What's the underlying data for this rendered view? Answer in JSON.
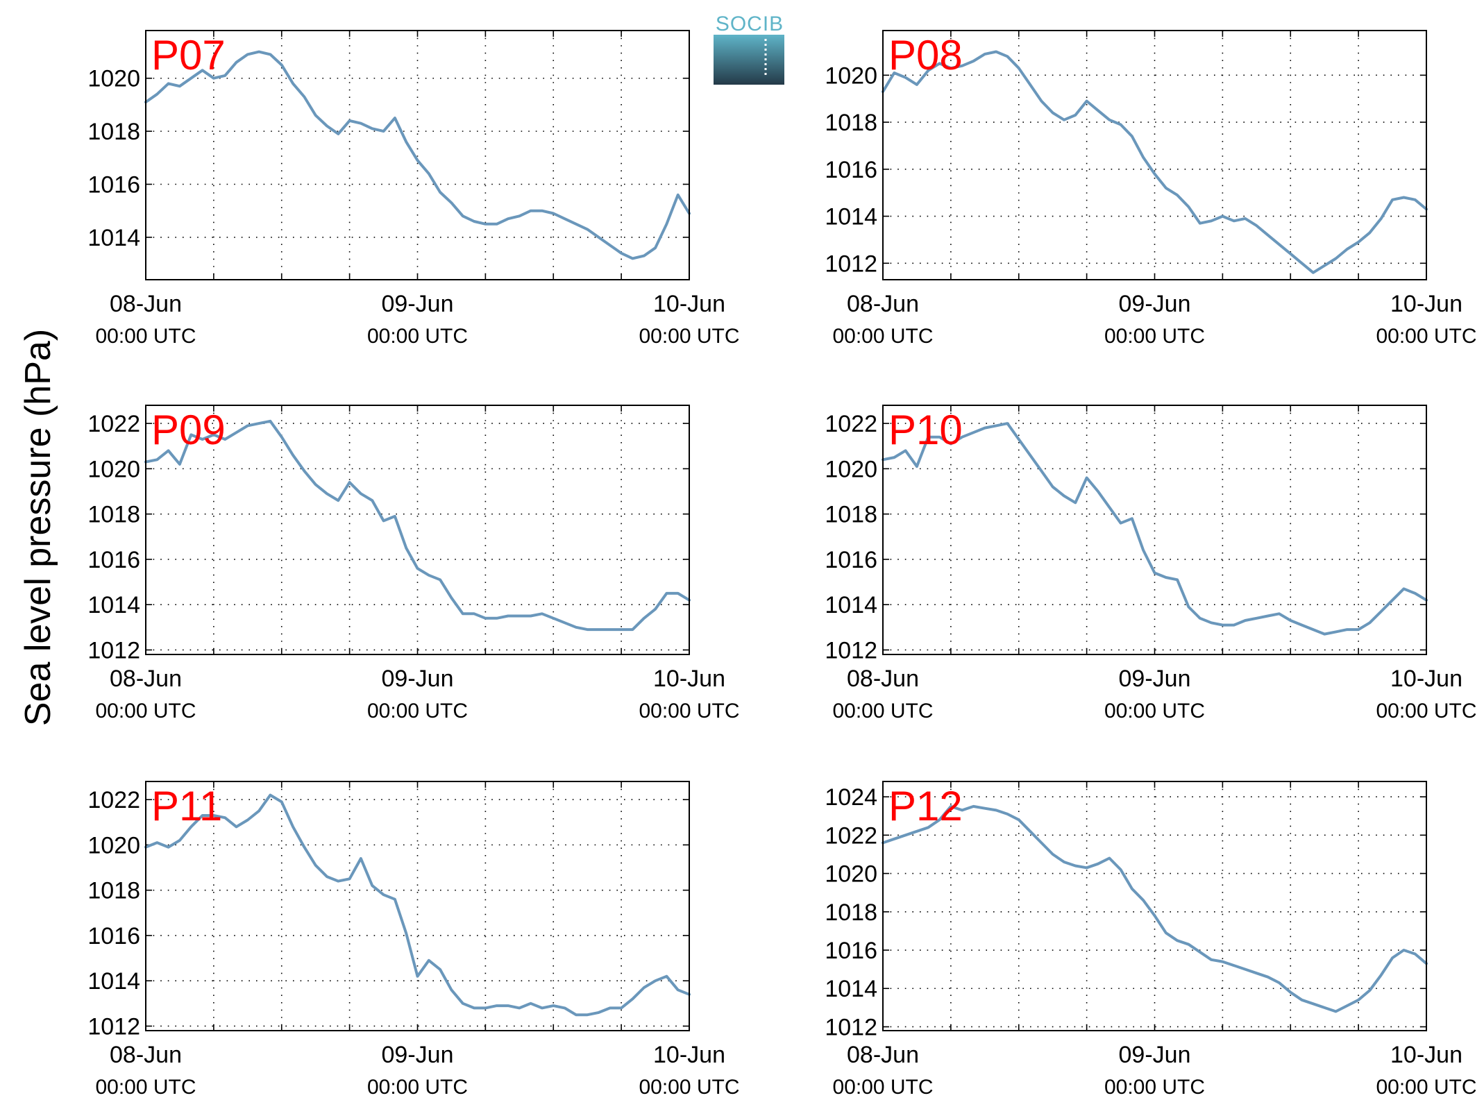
{
  "figure": {
    "ylabel": "Sea level pressure (hPa)",
    "logo_text": "SOCIB",
    "colors": {
      "line": "#6a97bb",
      "panel_label": "#ff0000",
      "grid": "#000000",
      "logo_top": "#5fb4c8",
      "logo_bottom": "#243a48"
    }
  },
  "chart_data": [
    {
      "type": "line",
      "label": "P07",
      "x_ticks": [
        {
          "main": "08-Jun",
          "sub": "00:00 UTC"
        },
        {
          "main": "09-Jun",
          "sub": "00:00 UTC"
        },
        {
          "main": "10-Jun",
          "sub": "00:00 UTC"
        }
      ],
      "xlim_hours": [
        0,
        48
      ],
      "ylim": [
        1012.4,
        1021.8
      ],
      "yticks": [
        1014,
        1016,
        1018,
        1020
      ],
      "grid": true,
      "series": [
        {
          "x_hours": [
            0,
            1,
            2,
            3,
            4,
            5,
            6,
            7,
            8,
            9,
            10,
            11,
            12,
            13,
            14,
            15,
            16,
            17,
            18,
            19,
            20,
            21,
            22,
            23,
            24,
            25,
            26,
            27,
            28,
            29,
            30,
            31,
            32,
            33,
            34,
            35,
            36,
            37,
            38,
            39,
            40,
            41,
            42,
            43,
            44,
            45,
            46,
            47,
            48
          ],
          "values": [
            1019.1,
            1019.4,
            1019.8,
            1019.7,
            1020.0,
            1020.3,
            1020.0,
            1020.1,
            1020.6,
            1020.9,
            1021.0,
            1020.9,
            1020.5,
            1019.8,
            1019.3,
            1018.6,
            1018.2,
            1017.9,
            1018.4,
            1018.3,
            1018.1,
            1018.0,
            1018.5,
            1017.6,
            1016.9,
            1016.4,
            1015.7,
            1015.3,
            1014.8,
            1014.6,
            1014.5,
            1014.5,
            1014.7,
            1014.8,
            1015.0,
            1015.0,
            1014.9,
            1014.7,
            1014.5,
            1014.3,
            1014.0,
            1013.7,
            1013.4,
            1013.2,
            1013.3,
            1013.6,
            1014.5,
            1015.6,
            1014.9
          ]
        }
      ]
    },
    {
      "type": "line",
      "label": "P08",
      "x_ticks": [
        {
          "main": "08-Jun",
          "sub": "00:00 UTC"
        },
        {
          "main": "09-Jun",
          "sub": "00:00 UTC"
        },
        {
          "main": "10-Jun",
          "sub": "00:00 UTC"
        }
      ],
      "xlim_hours": [
        0,
        48
      ],
      "ylim": [
        1011.3,
        1021.9
      ],
      "yticks": [
        1012,
        1014,
        1016,
        1018,
        1020
      ],
      "grid": true,
      "series": [
        {
          "x_hours": [
            0,
            1,
            2,
            3,
            4,
            5,
            6,
            7,
            8,
            9,
            10,
            11,
            12,
            13,
            14,
            15,
            16,
            17,
            18,
            19,
            20,
            21,
            22,
            23,
            24,
            25,
            26,
            27,
            28,
            29,
            30,
            31,
            32,
            33,
            34,
            35,
            36,
            37,
            38,
            39,
            40,
            41,
            42,
            43,
            44,
            45,
            46,
            47,
            48
          ],
          "values": [
            1019.3,
            1020.1,
            1019.9,
            1019.6,
            1020.2,
            1020.5,
            1020.3,
            1020.4,
            1020.6,
            1020.9,
            1021.0,
            1020.8,
            1020.3,
            1019.6,
            1018.9,
            1018.4,
            1018.1,
            1018.3,
            1018.9,
            1018.5,
            1018.1,
            1017.9,
            1017.4,
            1016.5,
            1015.8,
            1015.2,
            1014.9,
            1014.4,
            1013.7,
            1013.8,
            1014.0,
            1013.8,
            1013.9,
            1013.6,
            1013.2,
            1012.8,
            1012.4,
            1012.0,
            1011.6,
            1011.9,
            1012.2,
            1012.6,
            1012.9,
            1013.3,
            1013.9,
            1014.7,
            1014.8,
            1014.7,
            1014.3
          ]
        }
      ]
    },
    {
      "type": "line",
      "label": "P09",
      "x_ticks": [
        {
          "main": "08-Jun",
          "sub": "00:00 UTC"
        },
        {
          "main": "09-Jun",
          "sub": "00:00 UTC"
        },
        {
          "main": "10-Jun",
          "sub": "00:00 UTC"
        }
      ],
      "xlim_hours": [
        0,
        48
      ],
      "ylim": [
        1011.8,
        1022.8
      ],
      "yticks": [
        1012,
        1014,
        1016,
        1018,
        1020,
        1022
      ],
      "grid": true,
      "series": [
        {
          "x_hours": [
            0,
            1,
            2,
            3,
            4,
            5,
            6,
            7,
            8,
            9,
            10,
            11,
            12,
            13,
            14,
            15,
            16,
            17,
            18,
            19,
            20,
            21,
            22,
            23,
            24,
            25,
            26,
            27,
            28,
            29,
            30,
            31,
            32,
            33,
            34,
            35,
            36,
            37,
            38,
            39,
            40,
            41,
            42,
            43,
            44,
            45,
            46,
            47,
            48
          ],
          "values": [
            1020.3,
            1020.4,
            1020.8,
            1020.2,
            1021.5,
            1021.3,
            1021.5,
            1021.3,
            1021.6,
            1021.9,
            1022.0,
            1022.1,
            1021.4,
            1020.6,
            1019.9,
            1019.3,
            1018.9,
            1018.6,
            1019.4,
            1018.9,
            1018.6,
            1017.7,
            1017.9,
            1016.5,
            1015.6,
            1015.3,
            1015.1,
            1014.3,
            1013.6,
            1013.6,
            1013.4,
            1013.4,
            1013.5,
            1013.5,
            1013.5,
            1013.6,
            1013.4,
            1013.2,
            1013.0,
            1012.9,
            1012.9,
            1012.9,
            1012.9,
            1012.9,
            1013.4,
            1013.8,
            1014.5,
            1014.5,
            1014.2
          ]
        }
      ]
    },
    {
      "type": "line",
      "label": "P10",
      "x_ticks": [
        {
          "main": "08-Jun",
          "sub": "00:00 UTC"
        },
        {
          "main": "09-Jun",
          "sub": "00:00 UTC"
        },
        {
          "main": "10-Jun",
          "sub": "00:00 UTC"
        }
      ],
      "xlim_hours": [
        0,
        48
      ],
      "ylim": [
        1011.8,
        1022.8
      ],
      "yticks": [
        1012,
        1014,
        1016,
        1018,
        1020,
        1022
      ],
      "grid": true,
      "series": [
        {
          "x_hours": [
            0,
            1,
            2,
            3,
            4,
            5,
            6,
            7,
            8,
            9,
            10,
            11,
            12,
            13,
            14,
            15,
            16,
            17,
            18,
            19,
            20,
            21,
            22,
            23,
            24,
            25,
            26,
            27,
            28,
            29,
            30,
            31,
            32,
            33,
            34,
            35,
            36,
            37,
            38,
            39,
            40,
            41,
            42,
            43,
            44,
            45,
            46,
            47,
            48
          ],
          "values": [
            1020.4,
            1020.5,
            1020.8,
            1020.1,
            1021.4,
            1021.4,
            1021.1,
            1021.4,
            1021.6,
            1021.8,
            1021.9,
            1022.0,
            1021.3,
            1020.6,
            1019.9,
            1019.2,
            1018.8,
            1018.5,
            1019.6,
            1019.0,
            1018.3,
            1017.6,
            1017.8,
            1016.4,
            1015.4,
            1015.2,
            1015.1,
            1013.9,
            1013.4,
            1013.2,
            1013.1,
            1013.1,
            1013.3,
            1013.4,
            1013.5,
            1013.6,
            1013.3,
            1013.1,
            1012.9,
            1012.7,
            1012.8,
            1012.9,
            1012.9,
            1013.2,
            1013.7,
            1014.2,
            1014.7,
            1014.5,
            1014.2
          ]
        }
      ]
    },
    {
      "type": "line",
      "label": "P11",
      "x_ticks": [
        {
          "main": "08-Jun",
          "sub": "00:00 UTC"
        },
        {
          "main": "09-Jun",
          "sub": "00:00 UTC"
        },
        {
          "main": "10-Jun",
          "sub": "00:00 UTC"
        }
      ],
      "xlim_hours": [
        0,
        48
      ],
      "ylim": [
        1011.8,
        1022.8
      ],
      "yticks": [
        1012,
        1014,
        1016,
        1018,
        1020,
        1022
      ],
      "grid": true,
      "series": [
        {
          "x_hours": [
            0,
            1,
            2,
            3,
            4,
            5,
            6,
            7,
            8,
            9,
            10,
            11,
            12,
            13,
            14,
            15,
            16,
            17,
            18,
            19,
            20,
            21,
            22,
            23,
            24,
            25,
            26,
            27,
            28,
            29,
            30,
            31,
            32,
            33,
            34,
            35,
            36,
            37,
            38,
            39,
            40,
            41,
            42,
            43,
            44,
            45,
            46,
            47,
            48
          ],
          "values": [
            1019.9,
            1020.1,
            1019.9,
            1020.2,
            1020.8,
            1021.3,
            1021.3,
            1021.2,
            1020.8,
            1021.1,
            1021.5,
            1022.2,
            1021.9,
            1020.8,
            1019.9,
            1019.1,
            1018.6,
            1018.4,
            1018.5,
            1019.4,
            1018.2,
            1017.8,
            1017.6,
            1016.1,
            1014.2,
            1014.9,
            1014.5,
            1013.6,
            1013.0,
            1012.8,
            1012.8,
            1012.9,
            1012.9,
            1012.8,
            1013.0,
            1012.8,
            1012.9,
            1012.8,
            1012.5,
            1012.5,
            1012.6,
            1012.8,
            1012.8,
            1013.2,
            1013.7,
            1014.0,
            1014.2,
            1013.6,
            1013.4
          ]
        }
      ]
    },
    {
      "type": "line",
      "label": "P12",
      "x_ticks": [
        {
          "main": "08-Jun",
          "sub": "00:00 UTC"
        },
        {
          "main": "09-Jun",
          "sub": "00:00 UTC"
        },
        {
          "main": "10-Jun",
          "sub": "00:00 UTC"
        }
      ],
      "xlim_hours": [
        0,
        48
      ],
      "ylim": [
        1011.8,
        1024.8
      ],
      "yticks": [
        1012,
        1014,
        1016,
        1018,
        1020,
        1022,
        1024
      ],
      "grid": true,
      "series": [
        {
          "x_hours": [
            0,
            1,
            2,
            3,
            4,
            5,
            6,
            7,
            8,
            9,
            10,
            11,
            12,
            13,
            14,
            15,
            16,
            17,
            18,
            19,
            20,
            21,
            22,
            23,
            24,
            25,
            26,
            27,
            28,
            29,
            30,
            31,
            32,
            33,
            34,
            35,
            36,
            37,
            38,
            39,
            40,
            41,
            42,
            43,
            44,
            45,
            46,
            47,
            48
          ],
          "values": [
            1021.6,
            1021.8,
            1022.0,
            1022.2,
            1022.4,
            1022.8,
            1023.5,
            1023.3,
            1023.5,
            1023.4,
            1023.3,
            1023.1,
            1022.8,
            1022.2,
            1021.6,
            1021.0,
            1020.6,
            1020.4,
            1020.3,
            1020.5,
            1020.8,
            1020.2,
            1019.2,
            1018.6,
            1017.8,
            1016.9,
            1016.5,
            1016.3,
            1015.9,
            1015.5,
            1015.4,
            1015.2,
            1015.0,
            1014.8,
            1014.6,
            1014.3,
            1013.8,
            1013.4,
            1013.2,
            1013.0,
            1012.8,
            1013.1,
            1013.4,
            1013.9,
            1014.7,
            1015.6,
            1016.0,
            1015.8,
            1015.3
          ]
        }
      ]
    }
  ]
}
